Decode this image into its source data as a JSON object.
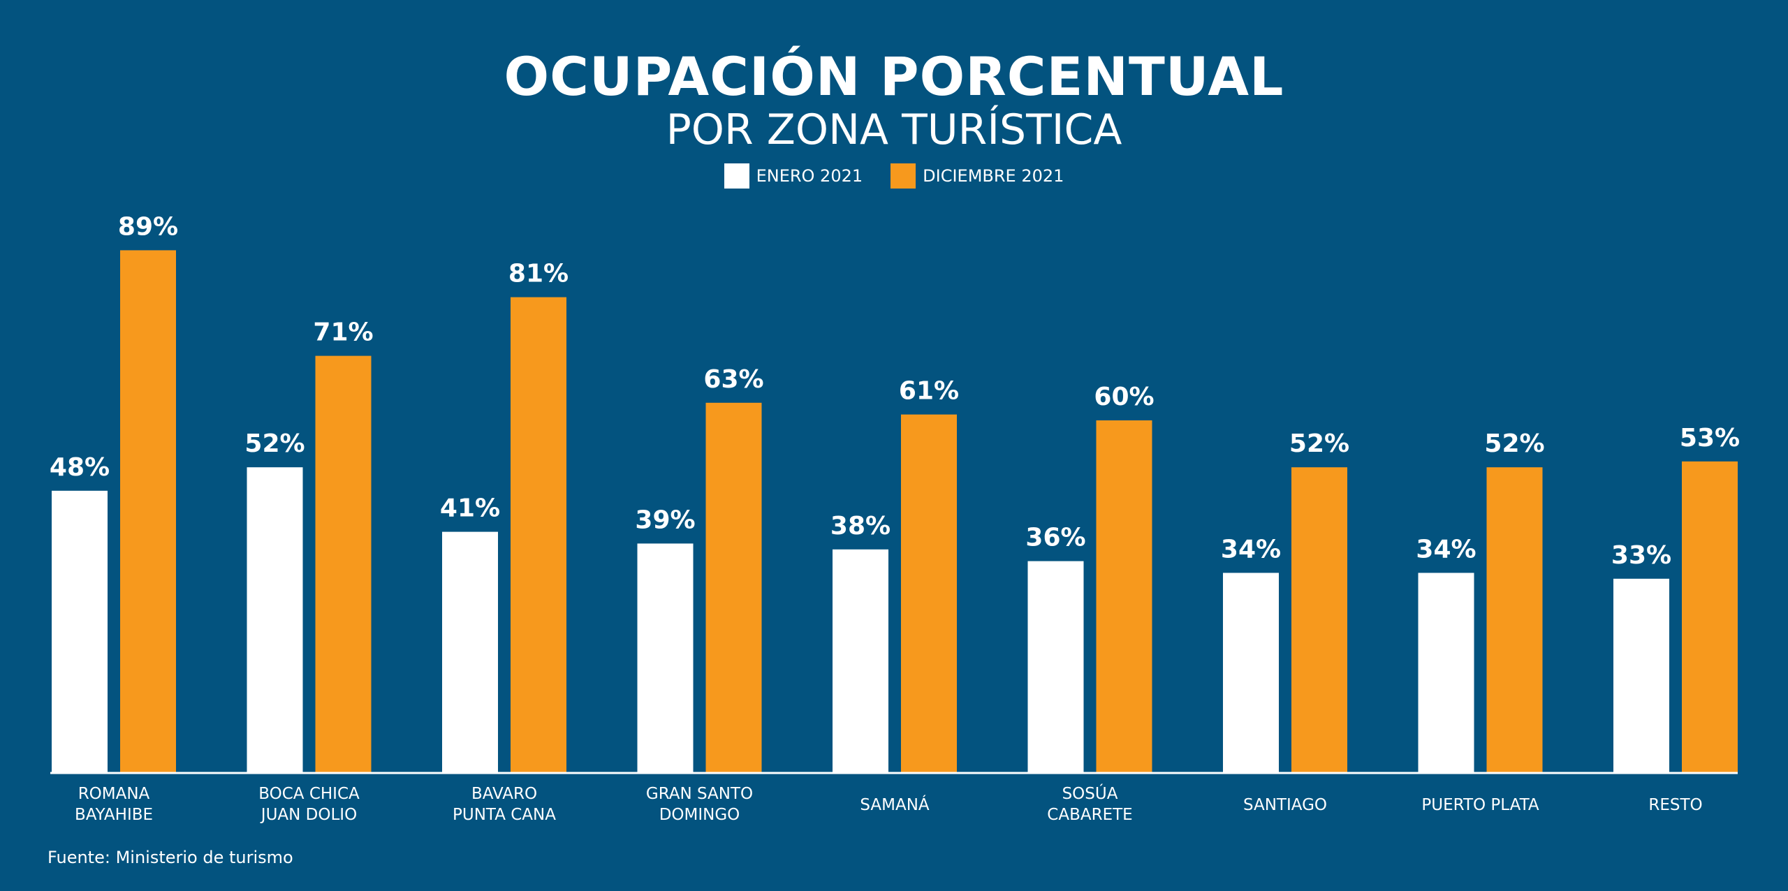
{
  "chart_data": {
    "type": "bar",
    "title": "OCUPACIÓN PORCENTUAL",
    "subtitle": "POR ZONA TURÍSTICA",
    "categories": [
      [
        "ROMANA",
        "BAYAHIBE"
      ],
      [
        "BOCA CHICA",
        "JUAN DOLIO"
      ],
      [
        "BAVARO",
        "PUNTA CANA"
      ],
      [
        "GRAN SANTO",
        "DOMINGO"
      ],
      [
        "SAMANÁ"
      ],
      [
        "SOSÚA",
        "CABARETE"
      ],
      [
        "SANTIAGO"
      ],
      [
        "PUERTO PLATA"
      ],
      [
        "RESTO"
      ]
    ],
    "series": [
      {
        "name": "ENERO 2021",
        "color": "#ffffff",
        "values": [
          48,
          52,
          41,
          39,
          38,
          36,
          34,
          34,
          33
        ]
      },
      {
        "name": "DICIEMBRE 2021",
        "color": "#f7991d",
        "values": [
          89,
          71,
          81,
          63,
          61,
          60,
          52,
          52,
          53
        ]
      }
    ],
    "value_suffix": "%",
    "ylim": [
      0,
      100
    ],
    "legend_position": "top-center",
    "grid": false
  },
  "source": "Fuente: Ministerio de turismo"
}
